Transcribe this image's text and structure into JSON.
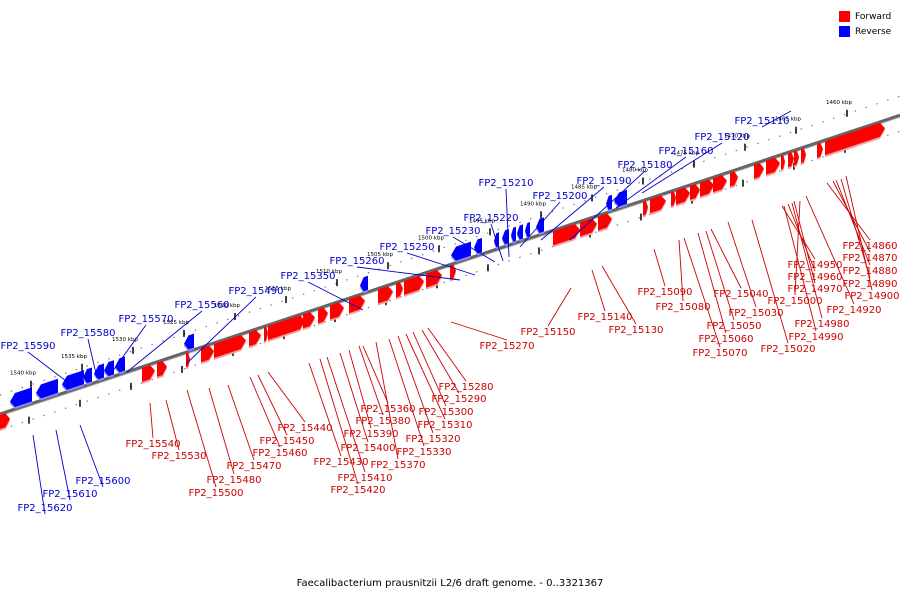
{
  "legend": {
    "forward": {
      "label": "Forward",
      "color": "#ff0000"
    },
    "reverse": {
      "label": "Reverse",
      "color": "#0000ff"
    }
  },
  "caption": "Faecalibacterium prausnitzii L2/6 draft genome. - 0..3321367",
  "colors": {
    "forward": "#ff0000",
    "forward_edge": "#cc0000",
    "reverse": "#0000ff",
    "axis": "#666666",
    "tick": "#000000"
  },
  "scale": {
    "unit_label": "kbp",
    "ticks": [
      1460,
      1465,
      1470,
      1475,
      1480,
      1485,
      1490,
      1495,
      1500,
      1505,
      1510,
      1515,
      1520,
      1525,
      1530,
      1535,
      1540
    ]
  },
  "reverse_genes": [
    "FP2_15110",
    "FP2_15120",
    "FP2_15160",
    "FP2_15180",
    "FP2_15190",
    "FP2_15200",
    "FP2_15210",
    "FP2_15220",
    "FP2_15230",
    "FP2_15250",
    "FP2_15260",
    "FP2_15350",
    "FP2_15490",
    "FP2_15560",
    "FP2_15570",
    "FP2_15580",
    "FP2_15590",
    "FP2_15600",
    "FP2_15610",
    "FP2_15620"
  ],
  "forward_genes": [
    "FP2_14860",
    "FP2_14870",
    "FP2_14880",
    "FP2_14890",
    "FP2_14900",
    "FP2_14920",
    "FP2_14950",
    "FP2_14960",
    "FP2_14970",
    "FP2_14980",
    "FP2_14990",
    "FP2_15000",
    "FP2_15020",
    "FP2_15030",
    "FP2_15040",
    "FP2_15050",
    "FP2_15060",
    "FP2_15070",
    "FP2_15080",
    "FP2_15090",
    "FP2_15130",
    "FP2_15140",
    "FP2_15150",
    "FP2_15270",
    "FP2_15280",
    "FP2_15290",
    "FP2_15300",
    "FP2_15310",
    "FP2_15320",
    "FP2_15330",
    "FP2_15360",
    "FP2_15370",
    "FP2_15380",
    "FP2_15390",
    "FP2_15400",
    "FP2_15410",
    "FP2_15420",
    "FP2_15430",
    "FP2_15440",
    "FP2_15450",
    "FP2_15460",
    "FP2_15470",
    "FP2_15480",
    "FP2_15500",
    "FP2_15530",
    "FP2_15540"
  ]
}
